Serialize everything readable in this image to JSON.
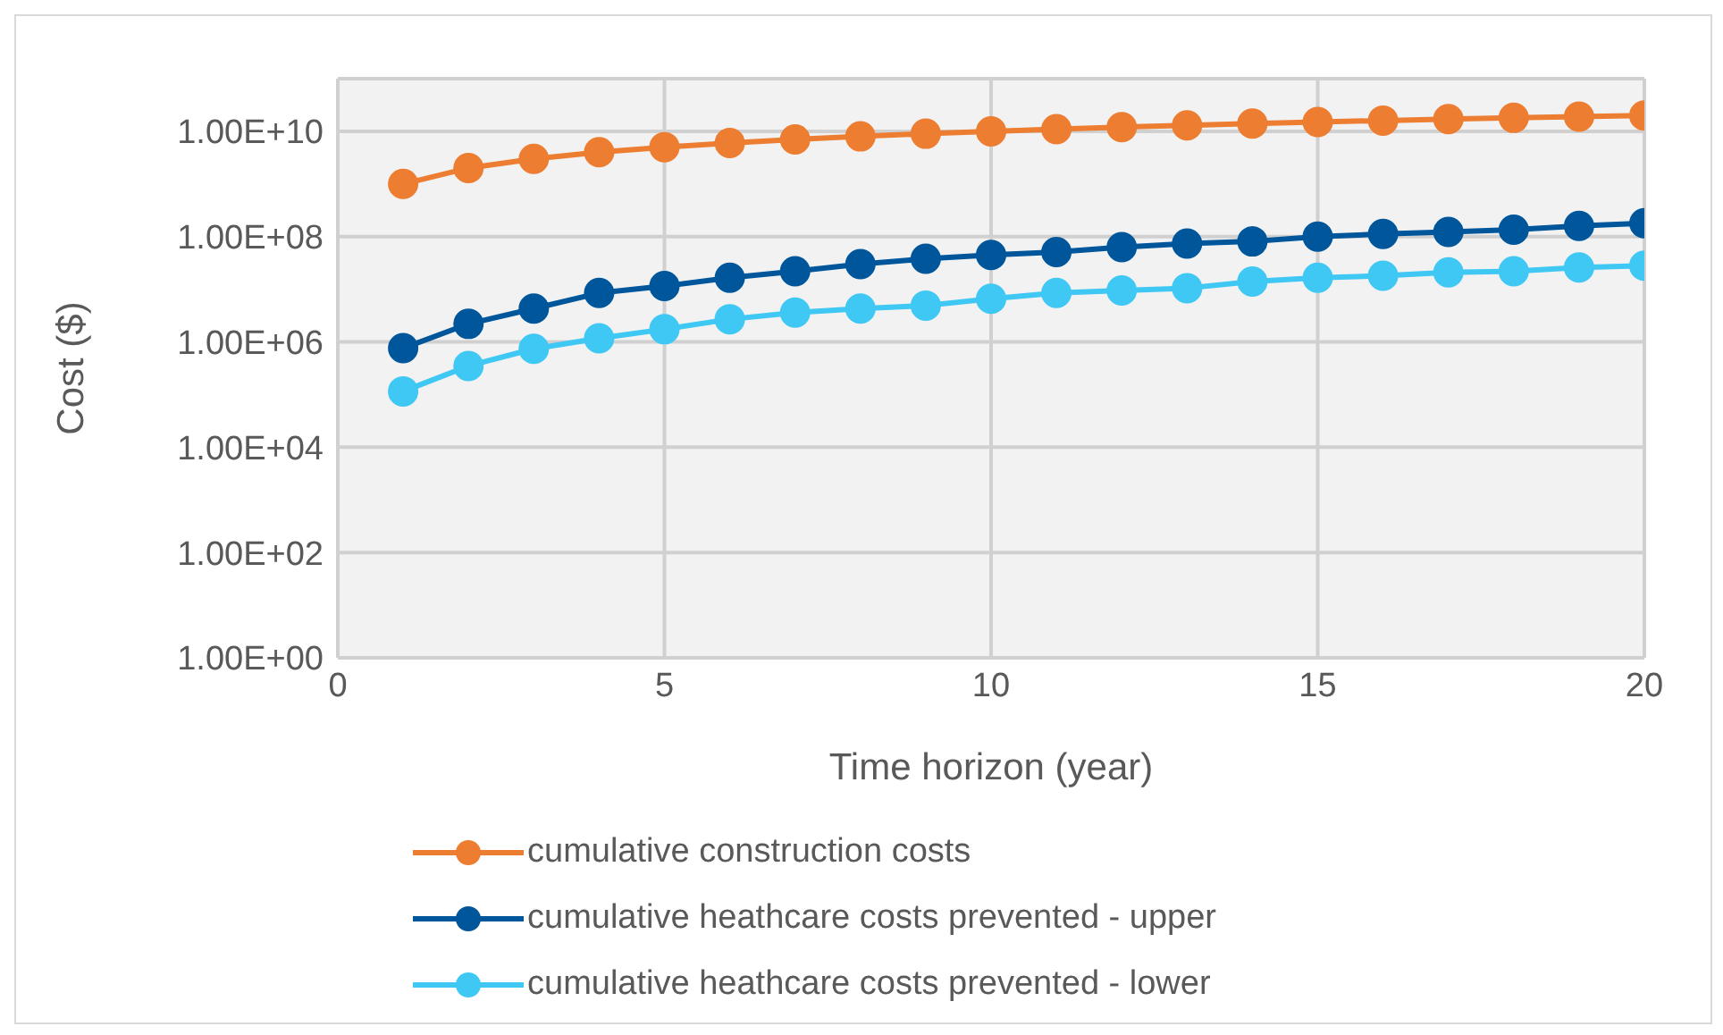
{
  "chart_data": {
    "type": "line",
    "xlabel": "Time horizon (year)",
    "ylabel": "Cost ($)",
    "x": [
      1,
      2,
      3,
      4,
      5,
      6,
      7,
      8,
      9,
      10,
      11,
      12,
      13,
      14,
      15,
      16,
      17,
      18,
      19,
      20
    ],
    "xlim": [
      0,
      20
    ],
    "xticks": [
      0,
      5,
      10,
      15,
      20
    ],
    "ylim": [
      1,
      100000000000
    ],
    "yticks": [
      {
        "value": 1,
        "label": "1.00E+00"
      },
      {
        "value": 100,
        "label": "1.00E+02"
      },
      {
        "value": 10000,
        "label": "1.00E+04"
      },
      {
        "value": 1000000,
        "label": "1.00E+06"
      },
      {
        "value": 100000000,
        "label": "1.00E+08"
      },
      {
        "value": 10000000000,
        "label": "1.00E+10"
      },
      {
        "value": 100000000000,
        "label": null
      }
    ],
    "log": "y",
    "grid": true,
    "legend": "bottom",
    "marker": "circle",
    "line_style": "solid",
    "series": [
      {
        "name": "cumulative construction costs",
        "color": "#ed7d31",
        "values": [
          1000000000.0,
          2000000000.0,
          3000000000.0,
          4000000000.0,
          5000000000.0,
          6000000000.0,
          7000000000.0,
          8000000000.0,
          9000000000.0,
          10000000000.0,
          11000000000.0,
          12000000000.0,
          13000000000.0,
          14000000000.0,
          15000000000.0,
          16000000000.0,
          17000000000.0,
          18000000000.0,
          19000000000.0,
          20000000000.0
        ]
      },
      {
        "name": "cumulative heathcare costs prevented - upper",
        "color": "#00569b",
        "values": [
          760000,
          2200000,
          4300000,
          8500000,
          11500000,
          16600000,
          22000000,
          30000000,
          38000000,
          45000000,
          51000000,
          63000000,
          74000000,
          81000000,
          100000000,
          112000000,
          123000000,
          135000000,
          160000000,
          180000000
        ]
      },
      {
        "name": "cumulative heathcare costs prevented - lower",
        "color": "#3fc8f4",
        "values": [
          115000,
          350000,
          740000,
          1170000,
          1740000,
          2700000,
          3600000,
          4300000,
          4900000,
          6600000,
          8500000,
          9500000,
          10500000,
          14000000,
          16600000,
          18000000,
          21000000,
          22000000,
          26000000,
          28000000
        ]
      }
    ]
  }
}
